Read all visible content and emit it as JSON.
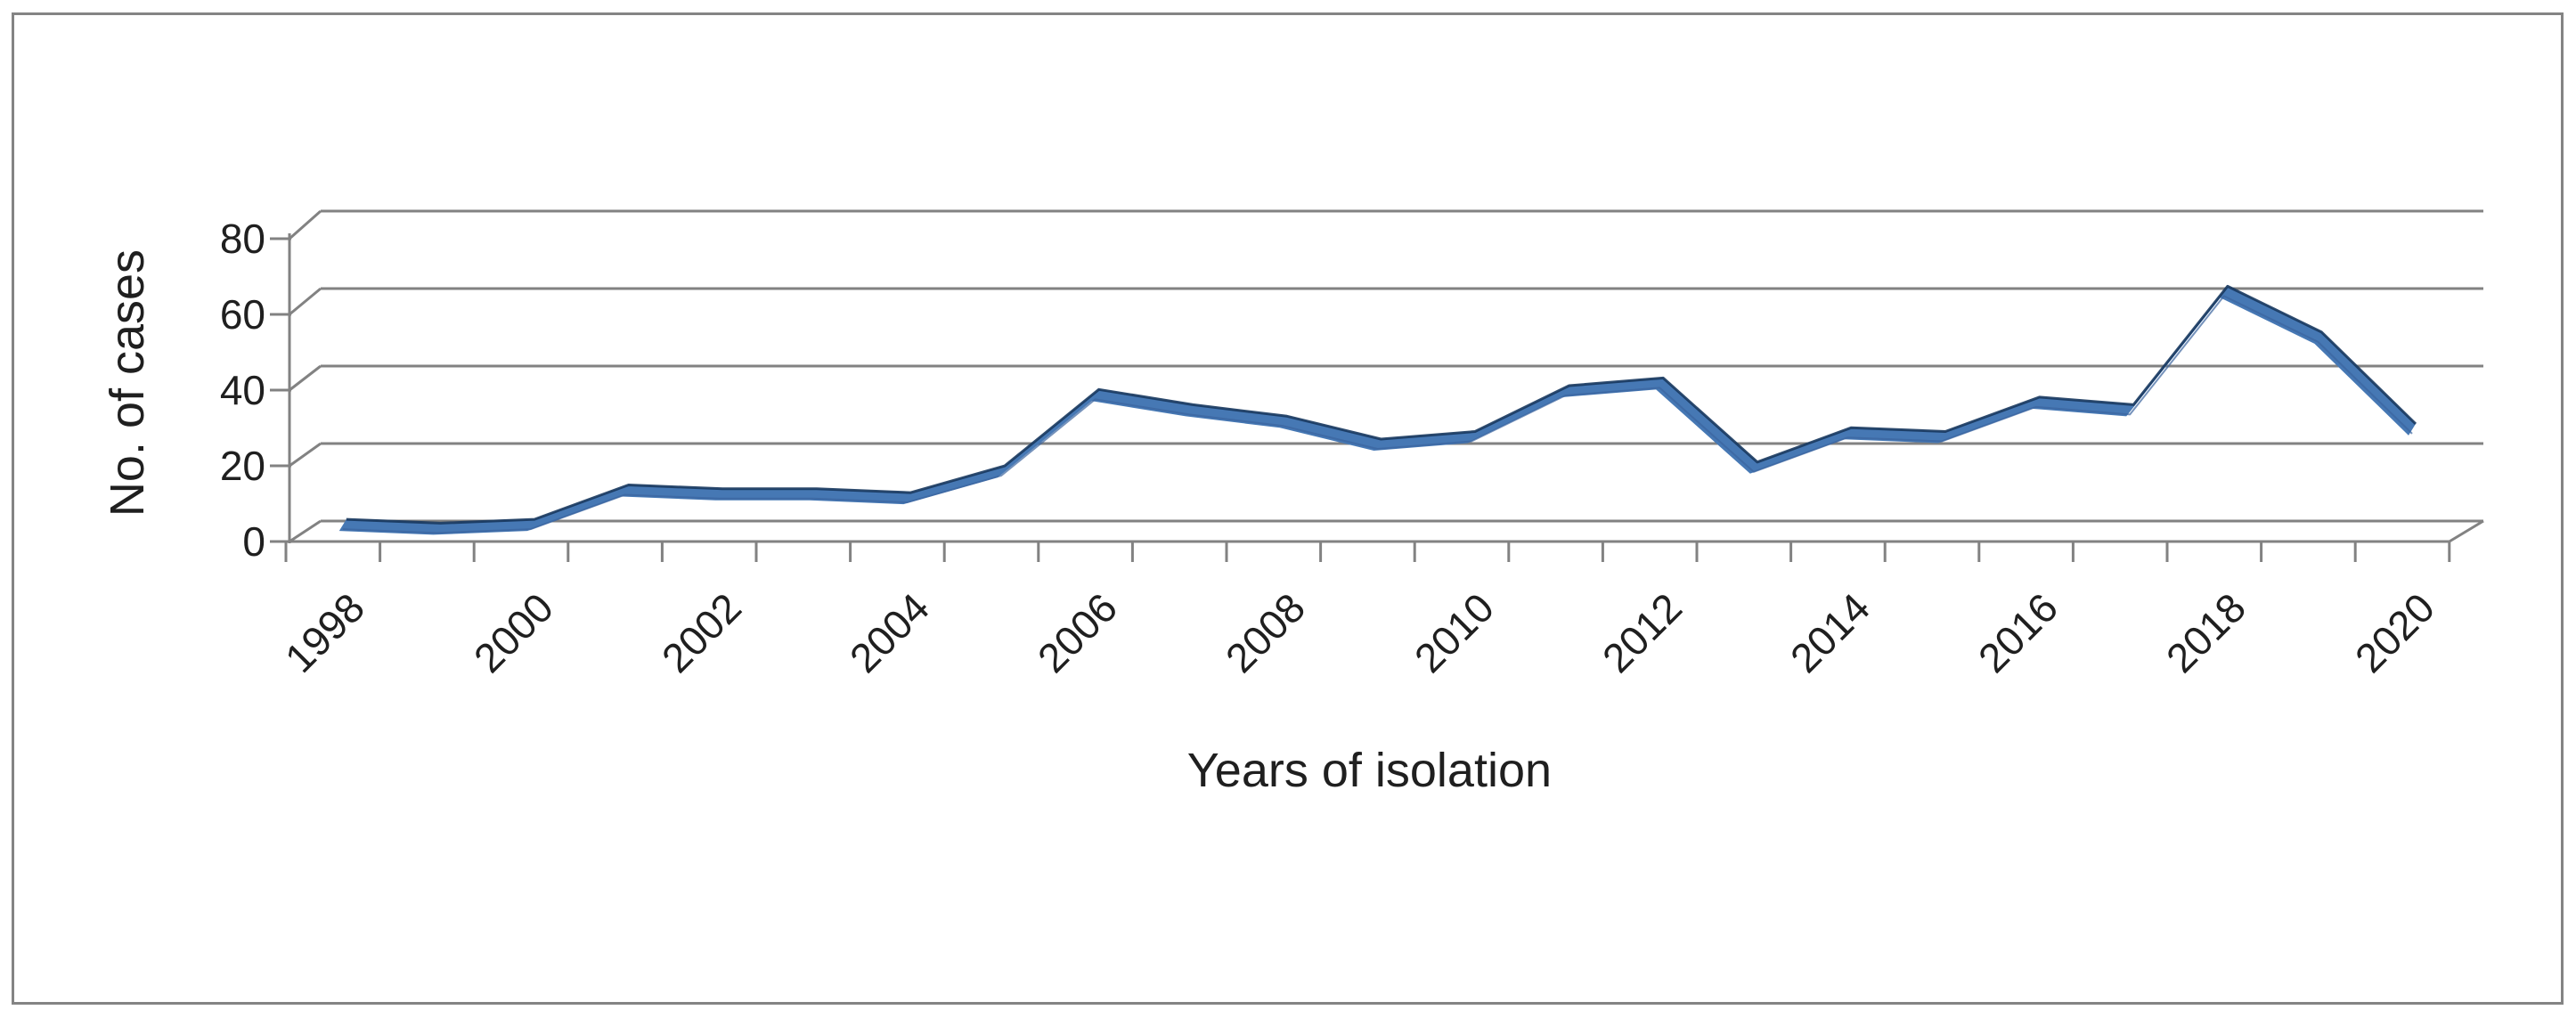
{
  "chart_data": {
    "type": "line",
    "style": "3d-ribbon",
    "title": "",
    "xlabel": "Years of isolation",
    "ylabel": "No. of cases",
    "categories": [
      1998,
      1999,
      2000,
      2001,
      2002,
      2003,
      2004,
      2005,
      2006,
      2007,
      2008,
      2009,
      2010,
      2011,
      2012,
      2013,
      2014,
      2015,
      2016,
      2017,
      2018,
      2019,
      2020
    ],
    "series": [
      {
        "name": "No. of cases",
        "values": [
          3,
          2,
          3,
          12,
          11,
          11,
          10,
          17,
          37,
          33,
          30,
          24,
          26,
          38,
          40,
          18,
          27,
          26,
          35,
          33,
          64,
          52,
          28
        ]
      }
    ],
    "x_tick_labels": [
      "1998",
      "2000",
      "2002",
      "2004",
      "2006",
      "2008",
      "2010",
      "2012",
      "2014",
      "2016",
      "2018",
      "2020"
    ],
    "x_label_interval": 2,
    "y_ticks": [
      0,
      20,
      40,
      60,
      80
    ],
    "ylim": [
      0,
      80
    ],
    "grid": true,
    "legend_visible": false,
    "colors": {
      "ribbon_fill": "#4678B4",
      "ribbon_edge": "#17375E",
      "ribbon_shade": "#3A649E",
      "gridline": "#828282",
      "axis": "#828282",
      "text": "#1f1f1f",
      "outer_border": "#848484",
      "background": "#ffffff"
    }
  }
}
